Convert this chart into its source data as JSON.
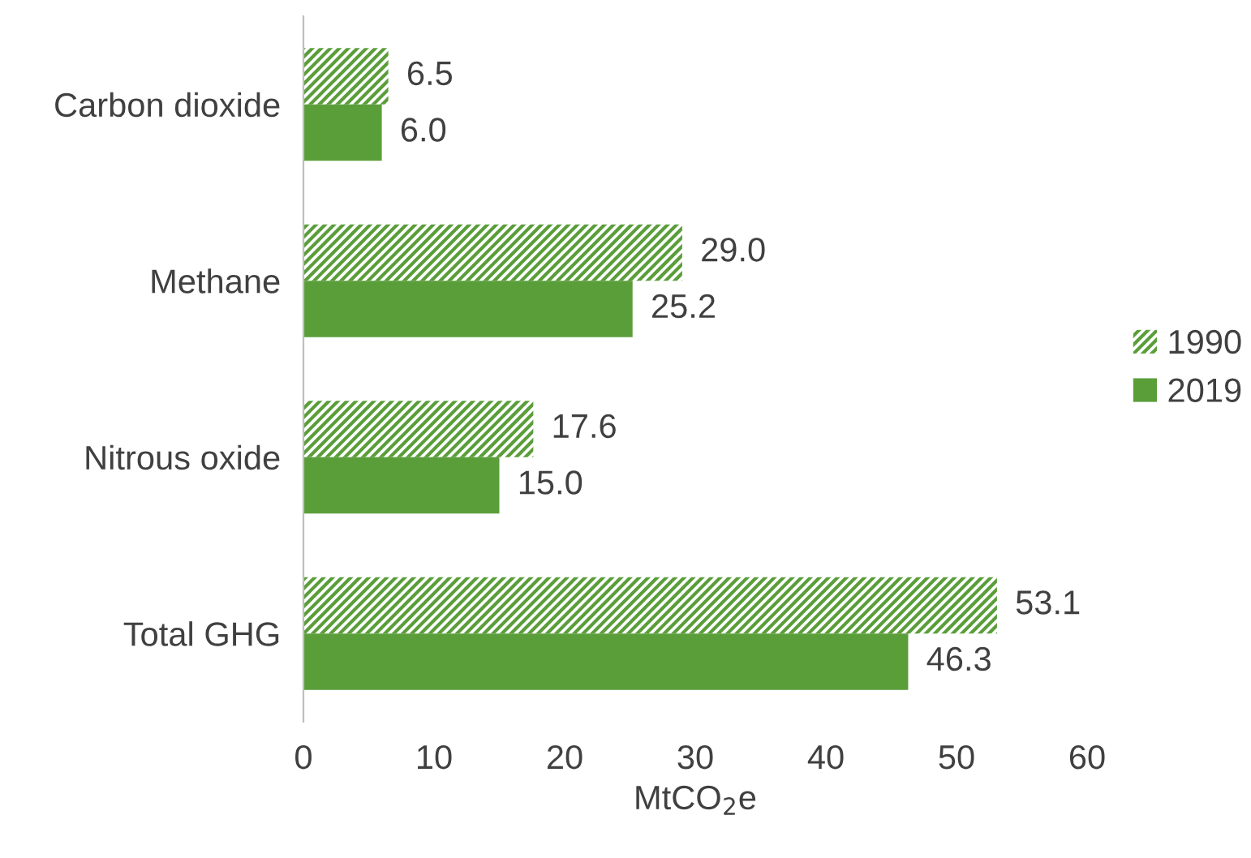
{
  "chart_data": {
    "type": "bar",
    "orientation": "horizontal",
    "xlabel": "MtCO$_{2}$e",
    "categories": [
      "Carbon dioxide",
      "Methane",
      "Nitrous oxide",
      "Total GHG"
    ],
    "series": [
      {
        "name": "1990",
        "color": "#5a9e3a",
        "values": [
          6.5,
          29.0,
          17.6,
          53.1
        ],
        "value_labels": [
          "6.5",
          "29.0",
          "17.6",
          "53.1"
        ]
      },
      {
        "name": "2019",
        "color": "#5a9e3a",
        "values": [
          6.0,
          25.2,
          15.0,
          46.3
        ],
        "value_labels": [
          "6.0",
          "25.2",
          "15.0",
          "46.3"
        ]
      }
    ],
    "xlim": [
      0,
      60
    ],
    "xticks": [
      0,
      10,
      20,
      30,
      40,
      50,
      60
    ],
    "grid": false,
    "legend": "right"
  }
}
